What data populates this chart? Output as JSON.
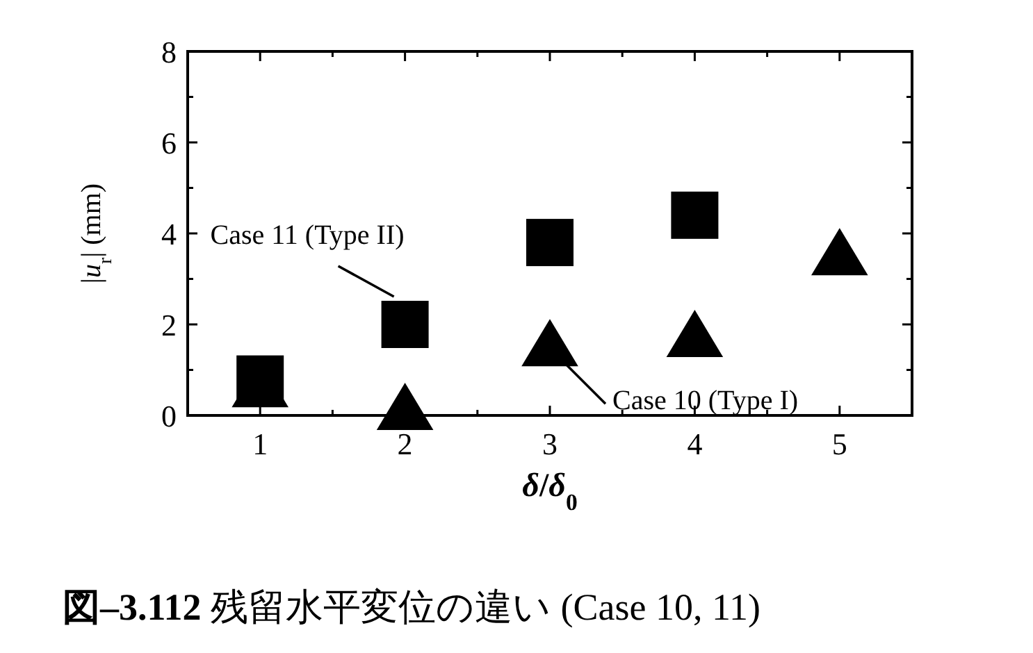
{
  "chart_data": {
    "type": "scatter",
    "title": "**図–3.112** 残留水平変位の違い (Case 10, 11)",
    "xlabel": "*δ*/*δ*$_{0}$",
    "ylabel": "|*u*$_{r}$| (mm)",
    "series": [
      {
        "color": "#000000",
        "marker": "square",
        "x": [
          1,
          2,
          3,
          4
        ],
        "values": [
          0.8,
          2.0,
          3.8,
          4.4
        ]
      },
      {
        "color": "#000000",
        "marker": "triangle",
        "x": [
          1,
          2,
          3,
          4,
          5
        ],
        "values": [
          0.7,
          0.2,
          1.6,
          1.8,
          3.6
        ]
      }
    ],
    "xlim": [
      0.5,
      5.5
    ],
    "ylim": [
      0,
      8
    ],
    "xticks": [
      {
        "value": 1,
        "label": "1"
      },
      {
        "value": 1.5,
        "label": null
      },
      {
        "value": 2,
        "label": "2"
      },
      {
        "value": 2.5,
        "label": null
      },
      {
        "value": 3,
        "label": "3"
      },
      {
        "value": 3.5,
        "label": null
      },
      {
        "value": 4,
        "label": "4"
      },
      {
        "value": 4.5,
        "label": null
      },
      {
        "value": 5,
        "label": "5"
      }
    ],
    "yticks": [
      {
        "value": 0,
        "label": "0"
      },
      {
        "value": 1,
        "label": null
      },
      {
        "value": 2,
        "label": "2"
      },
      {
        "value": 3,
        "label": null
      },
      {
        "value": 4,
        "label": "4"
      },
      {
        "value": 5,
        "label": null
      },
      {
        "value": 6,
        "label": "6"
      },
      {
        "value": 7,
        "label": null
      },
      {
        "value": 8,
        "label": "8"
      }
    ],
    "annotations": [
      {
        "text": "Case 11 (Type II)",
        "x": 2,
        "y": 2.0
      },
      {
        "text": "Case 10 (Type I)",
        "x": 3,
        "y": 1.6
      }
    ],
    "grid": false
  }
}
